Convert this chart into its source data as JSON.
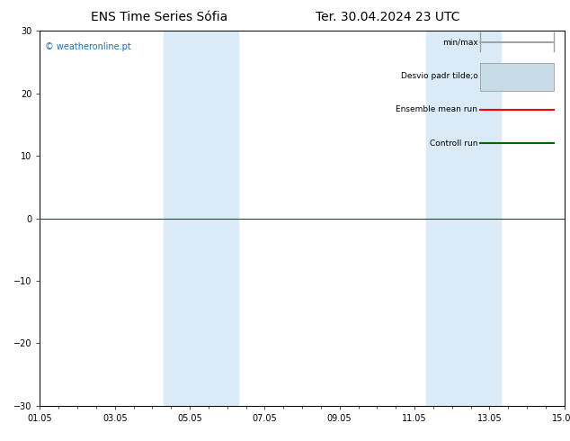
{
  "title_left": "ENS Time Series Sófia",
  "title_right": "Ter. 30.04.2024 23 UTC",
  "ylim": [
    -30,
    30
  ],
  "yticks": [
    -30,
    -20,
    -10,
    0,
    10,
    20,
    30
  ],
  "xtick_labels": [
    "01.05",
    "03.05",
    "05.05",
    "07.05",
    "09.05",
    "11.05",
    "13.05",
    "15.05"
  ],
  "xtick_positions": [
    0,
    2,
    4,
    6,
    8,
    10,
    12,
    14
  ],
  "xmin": 0,
  "xmax": 14,
  "shade_bands": [
    {
      "xmin": 3.3,
      "xmax": 5.3,
      "color": "#daeaf7"
    },
    {
      "xmin": 10.3,
      "xmax": 12.3,
      "color": "#daeaf7"
    }
  ],
  "hline_y": 0,
  "hline_color": "#006600",
  "watermark": "© weatheronline.pt",
  "watermark_color": "#1a6eb5",
  "bg_color": "#ffffff",
  "plot_bg_color": "#ffffff",
  "border_color": "#000000",
  "legend_line_color_minmax": "#a0a0a0",
  "legend_fill_color": "#c8dce8",
  "legend_line_color_ensemble": "#ff0000",
  "legend_line_color_control": "#006600",
  "font_size_title": 10,
  "font_size_ticks": 7,
  "font_size_legend": 6.5,
  "font_size_watermark": 7
}
